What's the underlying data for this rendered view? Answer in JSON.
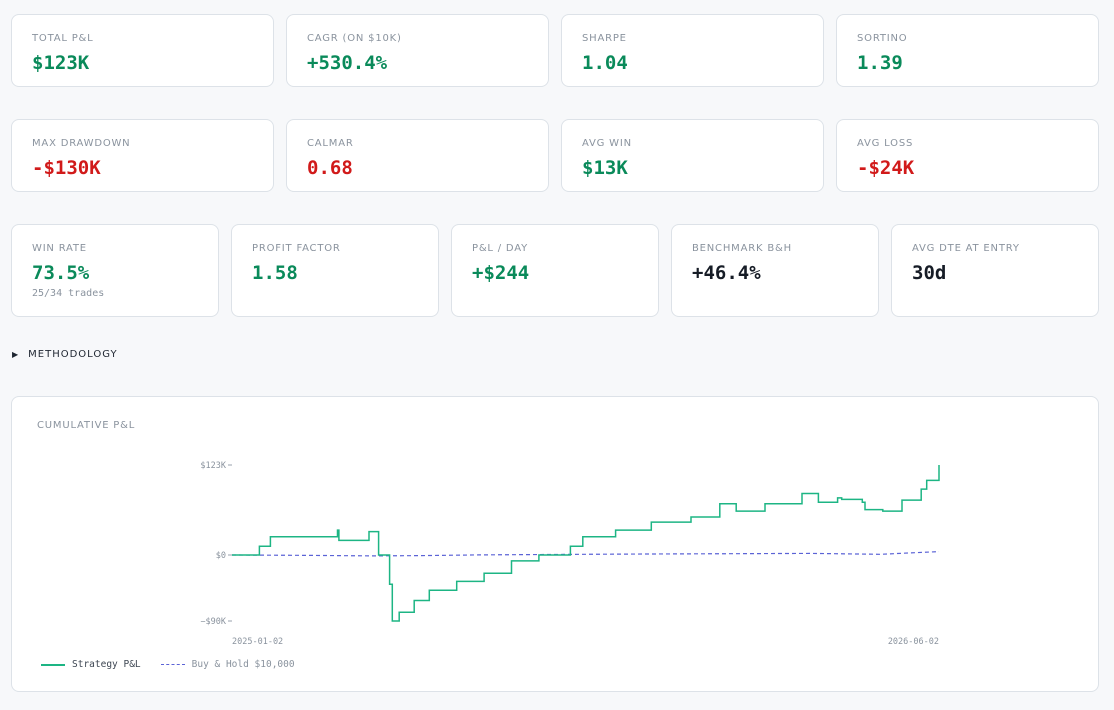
{
  "colors": {
    "positive": "#0a8a5a",
    "negative": "#d11a1a",
    "strategy_line": "#1db584",
    "benchmark_line": "#5b63d6"
  },
  "metrics": {
    "total_pnl": {
      "label": "TOTAL P&L",
      "value": "$123K"
    },
    "cagr": {
      "label": "CAGR (ON $10K)",
      "value": "+530.4%"
    },
    "sharpe": {
      "label": "SHARPE",
      "value": "1.04"
    },
    "sortino": {
      "label": "SORTINO",
      "value": "1.39"
    },
    "max_drawdown": {
      "label": "MAX DRAWDOWN",
      "value": "-$130K"
    },
    "calmar": {
      "label": "CALMAR",
      "value": "0.68"
    },
    "avg_win": {
      "label": "AVG WIN",
      "value": "$13K"
    },
    "avg_loss": {
      "label": "AVG LOSS",
      "value": "-$24K"
    },
    "win_rate": {
      "label": "WIN RATE",
      "value": "73.5%",
      "sub": "25/34 trades"
    },
    "profit_factor": {
      "label": "PROFIT FACTOR",
      "value": "1.58"
    },
    "pnl_per_day": {
      "label": "P&L / DAY",
      "value": "+$244"
    },
    "benchmark": {
      "label": "BENCHMARK B&H",
      "value": "+46.4%"
    },
    "avg_dte": {
      "label": "AVG DTE AT ENTRY",
      "value": "30d"
    }
  },
  "methodology": {
    "label": "METHODOLOGY"
  },
  "chart_data": {
    "type": "line",
    "title": "CUMULATIVE P&L",
    "y_ticks": [
      "$123K",
      "$0",
      "−$90K"
    ],
    "x_ticks": [
      "2025-01-02",
      "2026-06-02"
    ],
    "ylim": [
      -90,
      123
    ],
    "units": "thousands USD",
    "x_range": [
      "2025-01-02",
      "2026-06-02"
    ],
    "grid": false,
    "legend": "bottom-left",
    "series": [
      {
        "name": "Strategy P&L",
        "x": [
          "2025-01-02",
          "2025-01-22",
          "2025-01-30",
          "2025-02-23",
          "2025-03-20",
          "2025-03-21",
          "2025-03-25",
          "2025-04-12",
          "2025-04-18",
          "2025-04-19",
          "2025-04-27",
          "2025-04-29",
          "2025-05-02",
          "2025-05-04",
          "2025-05-07",
          "2025-05-15",
          "2025-05-26",
          "2025-06-15",
          "2025-07-05",
          "2025-07-25",
          "2025-08-14",
          "2025-09-06",
          "2025-09-15",
          "2025-10-09",
          "2025-11-04",
          "2025-12-03",
          "2025-12-24",
          "2026-01-03",
          "2026-01-05",
          "2026-01-26",
          "2026-02-22",
          "2026-03-04",
          "2026-03-06",
          "2026-03-20",
          "2026-03-23",
          "2026-04-07",
          "2026-04-09",
          "2026-04-22",
          "2026-05-06",
          "2026-05-20",
          "2026-05-24",
          "2026-06-02"
        ],
        "values": [
          0,
          12,
          25,
          25,
          34,
          20,
          20,
          32,
          32,
          0,
          -40,
          -90,
          -90,
          -78,
          -78,
          -62,
          -48,
          -36,
          -25,
          -8,
          0,
          12,
          25,
          34,
          45,
          52,
          70,
          70,
          60,
          70,
          84,
          84,
          72,
          78,
          76,
          72,
          62,
          60,
          75,
          90,
          102,
          123
        ]
      },
      {
        "name": "Buy & Hold $10,000",
        "x": [
          "2025-01-02",
          "2025-03-01",
          "2025-04-15",
          "2025-05-20",
          "2025-07-01",
          "2025-09-01",
          "2025-11-01",
          "2026-01-01",
          "2026-03-01",
          "2026-04-20",
          "2026-06-02"
        ],
        "values": [
          0,
          -0.5,
          -1.2,
          -0.8,
          0.2,
          0.8,
          1.4,
          1.8,
          2.2,
          1.0,
          4.6
        ]
      }
    ]
  }
}
